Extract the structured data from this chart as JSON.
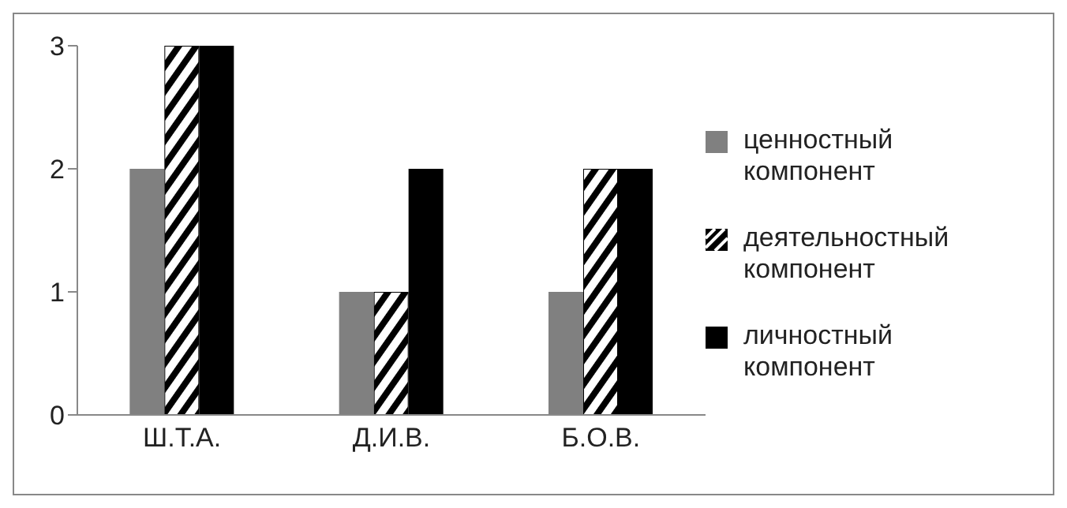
{
  "chart_data": {
    "type": "bar",
    "categories": [
      "Ш.Т.А.",
      "Д.И.В.",
      "Б.О.В."
    ],
    "series": [
      {
        "name": "ценностный компонент",
        "color": "#808080",
        "values": [
          2,
          1,
          1
        ]
      },
      {
        "name": "деятельностный компонент",
        "color": "#000000",
        "values": [
          3,
          1,
          2
        ]
      },
      {
        "name": "личностный компонент",
        "color": "#000000",
        "values": [
          3,
          2,
          2
        ]
      }
    ],
    "ylim": [
      0,
      3
    ],
    "yticks": [
      0,
      1,
      2,
      3
    ],
    "legend": "right"
  }
}
